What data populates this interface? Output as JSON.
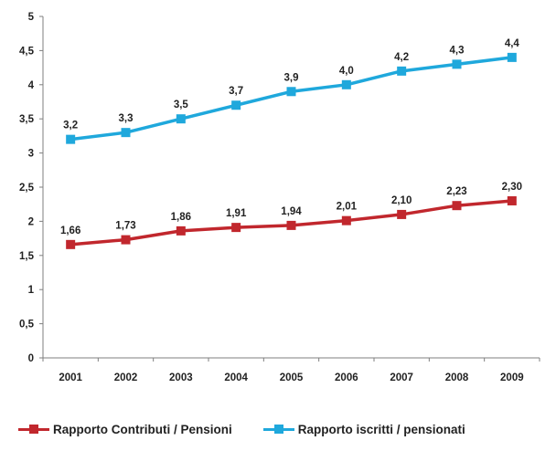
{
  "chart_data": {
    "type": "line",
    "categories": [
      "2001",
      "2002",
      "2003",
      "2004",
      "2005",
      "2006",
      "2007",
      "2008",
      "2009"
    ],
    "ylim": [
      0,
      5
    ],
    "yticks": [
      0,
      0.5,
      1,
      1.5,
      2,
      2.5,
      3,
      3.5,
      4,
      4.5,
      5
    ],
    "ytick_labels": [
      "0",
      "0,5",
      "1",
      "1,5",
      "2",
      "2,5",
      "3",
      "3,5",
      "4",
      "4,5",
      "5"
    ],
    "grid": false,
    "legend_position": "bottom",
    "series": [
      {
        "name": "Rapporto Contributi / Pensioni",
        "color": "#c1272d",
        "marker": "square",
        "values": [
          1.66,
          1.73,
          1.86,
          1.91,
          1.94,
          2.01,
          2.1,
          2.23,
          2.3
        ],
        "labels": [
          "1,66",
          "1,73",
          "1,86",
          "1,91",
          "1,94",
          "2,01",
          "2,10",
          "2,23",
          "2,30"
        ]
      },
      {
        "name": "Rapporto iscritti / pensionati",
        "color": "#1fa8dc",
        "marker": "square",
        "values": [
          3.2,
          3.3,
          3.5,
          3.7,
          3.9,
          4.0,
          4.2,
          4.3,
          4.4
        ],
        "labels": [
          "3,2",
          "3,3",
          "3,5",
          "3,7",
          "3,9",
          "4,0",
          "4,2",
          "4,3",
          "4,4"
        ]
      }
    ]
  }
}
